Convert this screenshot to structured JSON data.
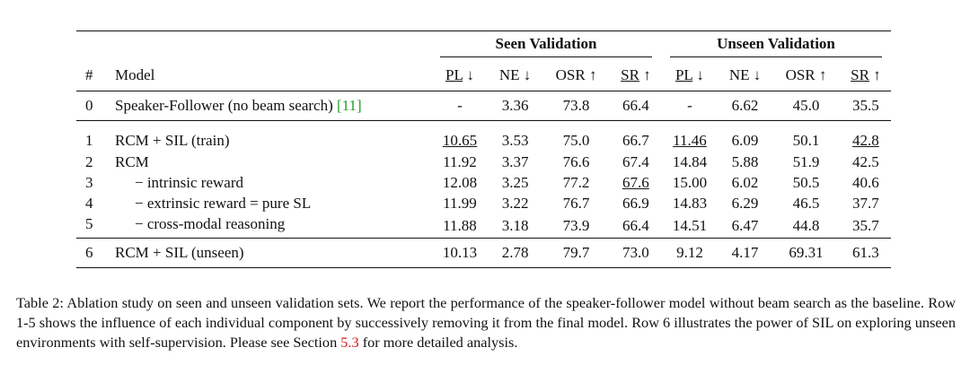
{
  "table": {
    "group_headers": [
      "Seen Validation",
      "Unseen Validation"
    ],
    "columns": {
      "num": "#",
      "model": "Model",
      "metrics": [
        {
          "name": "PL",
          "arrow": "↓"
        },
        {
          "name": "NE",
          "arrow": "↓"
        },
        {
          "name": "OSR",
          "arrow": "↑"
        },
        {
          "name": "SR",
          "arrow": "↑"
        },
        {
          "name": "PL",
          "arrow": "↓"
        },
        {
          "name": "NE",
          "arrow": "↓"
        },
        {
          "name": "OSR",
          "arrow": "↑"
        },
        {
          "name": "SR",
          "arrow": "↑"
        }
      ]
    },
    "rows": [
      {
        "num": "0",
        "model": "Speaker-Follower (no beam search) ",
        "cite": "[11]",
        "values": [
          "-",
          "3.36",
          "73.8",
          "66.4",
          "-",
          "6.62",
          "45.0",
          "35.5"
        ]
      },
      {
        "num": "1",
        "model": "RCM + SIL (train)",
        "values": [
          "10.65",
          "3.53",
          "75.0",
          "66.7",
          "11.46",
          "6.09",
          "50.1",
          "42.8"
        ]
      },
      {
        "num": "2",
        "model": "RCM",
        "values": [
          "11.92",
          "3.37",
          "76.6",
          "67.4",
          "14.84",
          "5.88",
          "51.9",
          "42.5"
        ]
      },
      {
        "num": "3",
        "model": "− intrinsic reward",
        "values": [
          "12.08",
          "3.25",
          "77.2",
          "67.6",
          "15.00",
          "6.02",
          "50.5",
          "40.6"
        ]
      },
      {
        "num": "4",
        "model": "− extrinsic reward = pure SL",
        "values": [
          "11.99",
          "3.22",
          "76.7",
          "66.9",
          "14.83",
          "6.29",
          "46.5",
          "37.7"
        ]
      },
      {
        "num": "5",
        "model": "− cross-modal reasoning",
        "values": [
          "11.88",
          "3.18",
          "73.9",
          "66.4",
          "14.51",
          "6.47",
          "44.8",
          "35.7"
        ]
      },
      {
        "num": "6",
        "model": "RCM + SIL (unseen)",
        "values": [
          "10.13",
          "2.78",
          "79.7",
          "73.0",
          "9.12",
          "4.17",
          "69.31",
          "61.3"
        ]
      }
    ]
  },
  "caption": {
    "text1": "Table 2: Ablation study on seen and unseen validation sets. We report the performance of the speaker-follower model without beam search as the baseline. Row 1-5 shows the influence of each individual component by successively removing it from the final model. Row 6 illustrates the power of SIL on exploring unseen environments with self-supervision. Please see Section ",
    "ref": "5.3",
    "text2": " for more detailed analysis."
  }
}
